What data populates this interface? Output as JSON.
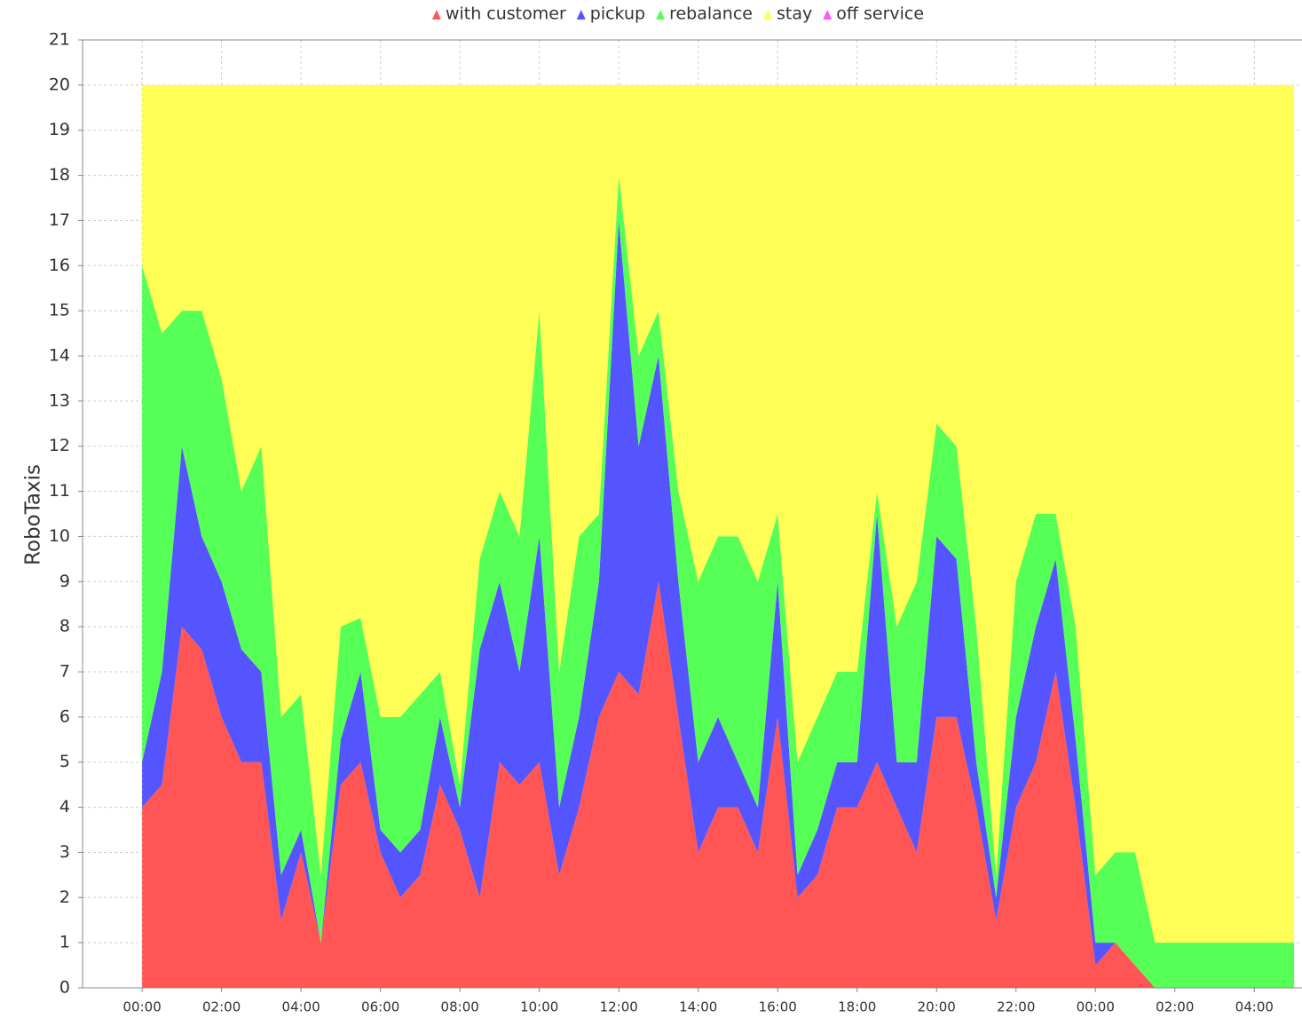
{
  "chart_data": {
    "type": "stacked-area",
    "y_label": "RoboTaxis",
    "x": [
      0,
      0.5,
      1,
      1.5,
      2,
      2.5,
      3,
      3.5,
      4,
      4.5,
      5,
      5.5,
      6,
      6.5,
      7,
      7.5,
      8,
      8.5,
      9,
      9.5,
      10,
      10.5,
      11,
      11.5,
      12,
      12.5,
      13,
      13.5,
      14,
      14.5,
      15,
      15.5,
      16,
      16.5,
      17,
      17.5,
      18,
      18.5,
      19,
      19.5,
      20,
      20.5,
      21,
      21.5,
      22,
      22.5,
      23,
      23.5,
      24,
      24.5,
      25,
      25.5,
      26,
      26.5,
      27,
      27.5,
      28,
      28.5,
      29
    ],
    "series": [
      {
        "name": "with customer",
        "color": "#ff5555",
        "values": [
          4,
          4.5,
          8,
          7.5,
          6,
          5,
          5,
          1.5,
          3,
          1,
          4.5,
          5,
          3,
          2,
          2.5,
          4.5,
          3.5,
          2,
          5,
          4.5,
          5,
          2.5,
          4,
          6,
          7,
          6.5,
          9,
          6,
          3,
          4,
          4,
          3,
          6,
          2,
          2.5,
          4,
          4,
          5,
          4,
          3,
          6,
          6,
          4,
          1.5,
          4,
          5,
          7,
          4,
          0.5,
          1,
          0.5,
          0,
          0,
          0,
          0,
          0,
          0,
          0,
          0
        ]
      },
      {
        "name": "pickup",
        "color": "#5555ff",
        "values": [
          1,
          2.5,
          4,
          2.5,
          3,
          2.5,
          2,
          1,
          0.5,
          0,
          1,
          2,
          0.5,
          1,
          1,
          1.5,
          0.5,
          5.5,
          4,
          2.5,
          5,
          1.5,
          2,
          3,
          10,
          5.5,
          5,
          3,
          2,
          2,
          1,
          1,
          3,
          0.5,
          1,
          1,
          1,
          5.5,
          1,
          2,
          4,
          3.5,
          1,
          0.5,
          2,
          3,
          2.5,
          1.5,
          0.5,
          0,
          0,
          0,
          0,
          0,
          0,
          0,
          0,
          0,
          0
        ]
      },
      {
        "name": "rebalance",
        "color": "#55ff55",
        "values": [
          11,
          7.5,
          3,
          5,
          4.5,
          3.5,
          5,
          3.5,
          3,
          1.5,
          2.5,
          1.2,
          2.5,
          3,
          3,
          1,
          0.5,
          2,
          2,
          3,
          5,
          3,
          4,
          1.5,
          1,
          2,
          1,
          2,
          4,
          4,
          5,
          5,
          1.5,
          2.5,
          2.5,
          2,
          2,
          0.5,
          3,
          4,
          2.5,
          2.5,
          3,
          0.5,
          3,
          2.5,
          1,
          2.5,
          1.5,
          2,
          2.5,
          1,
          1,
          1,
          1,
          1,
          1,
          1,
          1
        ]
      },
      {
        "name": "stay",
        "color": "#ffff55",
        "values": [
          4,
          5.5,
          5,
          5,
          6.5,
          9,
          8,
          14,
          13.5,
          17.5,
          12,
          11.8,
          14,
          14,
          13.5,
          13,
          15.5,
          10.5,
          9,
          10,
          5,
          13,
          10,
          9.5,
          2,
          6,
          5,
          9,
          11,
          10,
          10,
          11,
          9.5,
          15,
          14,
          13,
          13,
          9,
          12,
          11,
          7.5,
          8,
          12,
          17.5,
          11,
          9.5,
          9.5,
          12,
          17.5,
          17,
          17,
          19,
          19,
          19,
          19,
          19,
          19,
          19,
          19
        ]
      },
      {
        "name": "off service",
        "color": "#ff55ff",
        "values": [
          0,
          0,
          0,
          0,
          0,
          0,
          0,
          0,
          0,
          0,
          0,
          0,
          0,
          0,
          0,
          0,
          0,
          0,
          0,
          0,
          0,
          0,
          0,
          0,
          0,
          0,
          0,
          0,
          0,
          0,
          0,
          0,
          0,
          0,
          0,
          0,
          0,
          0,
          0,
          0,
          0,
          0,
          0,
          0,
          0,
          0,
          0,
          0,
          0,
          0,
          0,
          0,
          0,
          0,
          0,
          0,
          0,
          0,
          0
        ]
      }
    ],
    "xlim": [
      -1.5,
      29.2
    ],
    "xticks": [
      {
        "value": 0,
        "label": "00:00"
      },
      {
        "value": 2,
        "label": "02:00"
      },
      {
        "value": 4,
        "label": "04:00"
      },
      {
        "value": 6,
        "label": "06:00"
      },
      {
        "value": 8,
        "label": "08:00"
      },
      {
        "value": 10,
        "label": "10:00"
      },
      {
        "value": 12,
        "label": "12:00"
      },
      {
        "value": 14,
        "label": "14:00"
      },
      {
        "value": 16,
        "label": "16:00"
      },
      {
        "value": 18,
        "label": "18:00"
      },
      {
        "value": 20,
        "label": "20:00"
      },
      {
        "value": 22,
        "label": "22:00"
      },
      {
        "value": 24,
        "label": "00:00"
      },
      {
        "value": 26,
        "label": "02:00"
      },
      {
        "value": 28,
        "label": "04:00"
      }
    ],
    "ylim": [
      0,
      21
    ],
    "yticks": [
      0,
      1,
      2,
      3,
      4,
      5,
      6,
      7,
      8,
      9,
      10,
      11,
      12,
      13,
      14,
      15,
      16,
      17,
      18,
      19,
      20,
      21
    ],
    "grid": true,
    "legend": "top"
  }
}
